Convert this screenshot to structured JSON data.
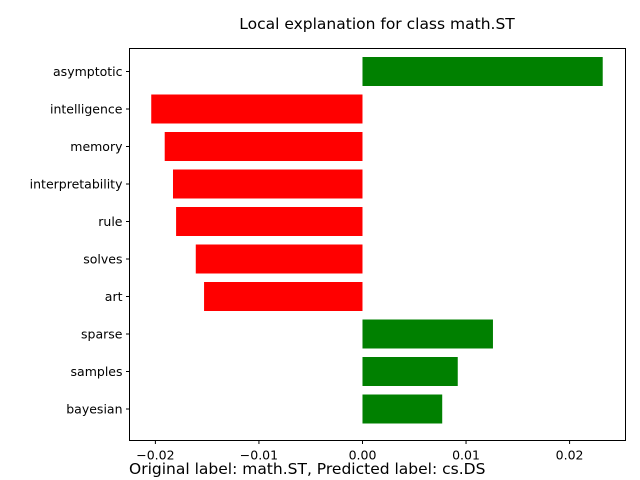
{
  "chart_data": {
    "type": "bar",
    "orientation": "horizontal",
    "title": "Local explanation for class math.ST",
    "xlabel": "",
    "ylabel": "",
    "categories": [
      "asymptotic",
      "intelligence",
      "memory",
      "interpretability",
      "rule",
      "solves",
      "art",
      "sparse",
      "samples",
      "bayesian"
    ],
    "values": [
      0.0232,
      -0.0204,
      -0.0191,
      -0.0183,
      -0.018,
      -0.0161,
      -0.0153,
      0.0126,
      0.0092,
      0.0077
    ],
    "xticks": [
      -0.02,
      -0.01,
      0.0,
      0.01,
      0.02
    ],
    "xtick_labels": [
      "−0.02",
      "−0.01",
      "0.00",
      "0.01",
      "0.02"
    ],
    "xlim": [
      -0.0225,
      0.0254
    ],
    "colors": {
      "positive": "#008000",
      "negative": "#ff0000"
    },
    "grid": false,
    "legend": "none"
  },
  "caption": "Original label: math.ST, Predicted label: cs.DS"
}
